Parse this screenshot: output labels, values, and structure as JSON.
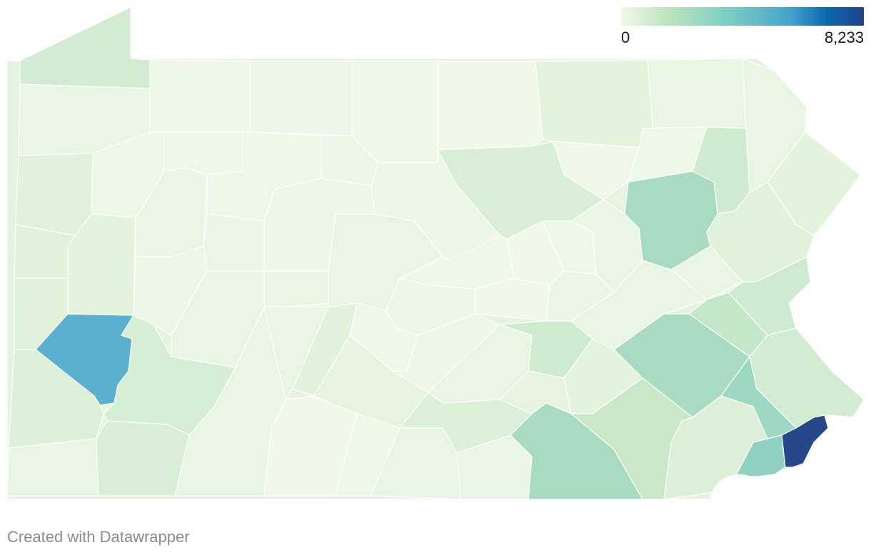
{
  "legend": {
    "min_label": "0",
    "max_label": "8,233",
    "min_value": 0,
    "max_value": 8233,
    "colors": [
      "#f0f9e8",
      "#bae4bc",
      "#7bccc4",
      "#43a2ca",
      "#0868ac",
      "#253f8a"
    ]
  },
  "footer": {
    "credit": "Created with Datawrapper"
  },
  "map": {
    "region": "Pennsylvania counties",
    "base_fill": "#e3f3dc",
    "county_fill_levels": {
      "lightest": "#eef8e8",
      "light": "#e1f2db",
      "mid_light": "#cfebcf",
      "mid": "#a8dcc0",
      "mid_strong": "#9dd8c2",
      "strong": "#5bb1cd",
      "max": "#26478a"
    }
  }
}
